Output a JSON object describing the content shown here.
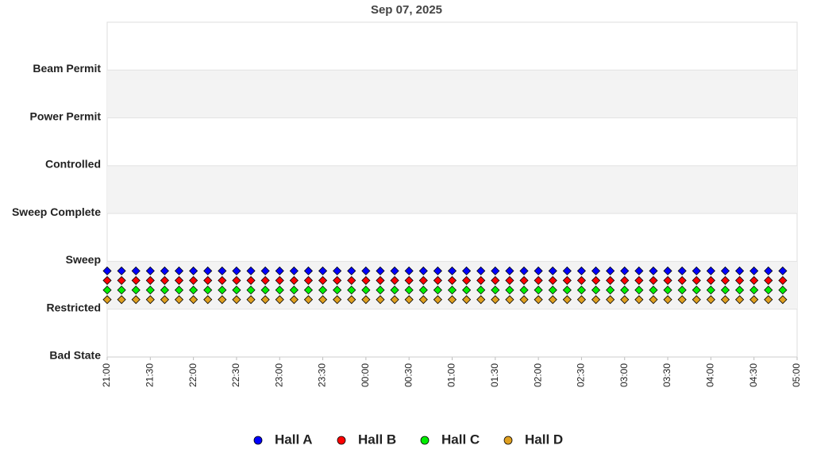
{
  "chart_data": {
    "type": "scatter",
    "title": "Sep 07, 2025",
    "x": [
      "21:00",
      "21:10",
      "21:20",
      "21:30",
      "21:40",
      "21:50",
      "22:00",
      "22:10",
      "22:20",
      "22:30",
      "22:40",
      "22:50",
      "23:00",
      "23:10",
      "23:20",
      "23:30",
      "23:40",
      "23:50",
      "00:00",
      "00:10",
      "00:20",
      "00:30",
      "00:40",
      "00:50",
      "01:00",
      "01:10",
      "01:20",
      "01:30",
      "01:40",
      "01:50",
      "02:00",
      "02:10",
      "02:20",
      "02:30",
      "02:40",
      "02:50",
      "03:00",
      "03:10",
      "03:20",
      "03:30",
      "03:40",
      "03:50",
      "04:00",
      "04:10",
      "04:20",
      "04:30",
      "04:40",
      "04:50"
    ],
    "xlim": [
      "21:00",
      "05:00"
    ],
    "xticks": [
      "21:00",
      "21:30",
      "22:00",
      "22:30",
      "23:00",
      "23:30",
      "00:00",
      "00:30",
      "01:00",
      "01:30",
      "02:00",
      "02:30",
      "03:00",
      "03:30",
      "04:00",
      "04:30",
      "05:00"
    ],
    "ylim": [
      0,
      7
    ],
    "yticks": [
      {
        "value": 0,
        "label": "Bad State"
      },
      {
        "value": 1,
        "label": "Restricted"
      },
      {
        "value": 2,
        "label": "Sweep"
      },
      {
        "value": 3,
        "label": "Sweep Complete"
      },
      {
        "value": 4,
        "label": "Controlled"
      },
      {
        "value": 5,
        "label": "Power Permit"
      },
      {
        "value": 6,
        "label": "Beam Permit"
      }
    ],
    "grid": true,
    "legend": "bottom",
    "series": [
      {
        "name": "Hall A",
        "color": "#0000ff",
        "values": [
          1.8,
          1.8,
          1.8,
          1.8,
          1.8,
          1.8,
          1.8,
          1.8,
          1.8,
          1.8,
          1.8,
          1.8,
          1.8,
          1.8,
          1.8,
          1.8,
          1.8,
          1.8,
          1.8,
          1.8,
          1.8,
          1.8,
          1.8,
          1.8,
          1.8,
          1.8,
          1.8,
          1.8,
          1.8,
          1.8,
          1.8,
          1.8,
          1.8,
          1.8,
          1.8,
          1.8,
          1.8,
          1.8,
          1.8,
          1.8,
          1.8,
          1.8,
          1.8,
          1.8,
          1.8,
          1.8,
          1.8,
          1.8
        ]
      },
      {
        "name": "Hall B",
        "color": "#ff0000",
        "values": [
          1.6,
          1.6,
          1.6,
          1.6,
          1.6,
          1.6,
          1.6,
          1.6,
          1.6,
          1.6,
          1.6,
          1.6,
          1.6,
          1.6,
          1.6,
          1.6,
          1.6,
          1.6,
          1.6,
          1.6,
          1.6,
          1.6,
          1.6,
          1.6,
          1.6,
          1.6,
          1.6,
          1.6,
          1.6,
          1.6,
          1.6,
          1.6,
          1.6,
          1.6,
          1.6,
          1.6,
          1.6,
          1.6,
          1.6,
          1.6,
          1.6,
          1.6,
          1.6,
          1.6,
          1.6,
          1.6,
          1.6,
          1.6
        ]
      },
      {
        "name": "Hall C",
        "color": "#00ee00",
        "values": [
          1.4,
          1.4,
          1.4,
          1.4,
          1.4,
          1.4,
          1.4,
          1.4,
          1.4,
          1.4,
          1.4,
          1.4,
          1.4,
          1.4,
          1.4,
          1.4,
          1.4,
          1.4,
          1.4,
          1.4,
          1.4,
          1.4,
          1.4,
          1.4,
          1.4,
          1.4,
          1.4,
          1.4,
          1.4,
          1.4,
          1.4,
          1.4,
          1.4,
          1.4,
          1.4,
          1.4,
          1.4,
          1.4,
          1.4,
          1.4,
          1.4,
          1.4,
          1.4,
          1.4,
          1.4,
          1.4,
          1.4,
          1.4
        ]
      },
      {
        "name": "Hall D",
        "color": "#e0a020",
        "values": [
          1.2,
          1.2,
          1.2,
          1.2,
          1.2,
          1.2,
          1.2,
          1.2,
          1.2,
          1.2,
          1.2,
          1.2,
          1.2,
          1.2,
          1.2,
          1.2,
          1.2,
          1.2,
          1.2,
          1.2,
          1.2,
          1.2,
          1.2,
          1.2,
          1.2,
          1.2,
          1.2,
          1.2,
          1.2,
          1.2,
          1.2,
          1.2,
          1.2,
          1.2,
          1.2,
          1.2,
          1.2,
          1.2,
          1.2,
          1.2,
          1.2,
          1.2,
          1.2,
          1.2,
          1.2,
          1.2,
          1.2,
          1.2
        ]
      }
    ]
  }
}
